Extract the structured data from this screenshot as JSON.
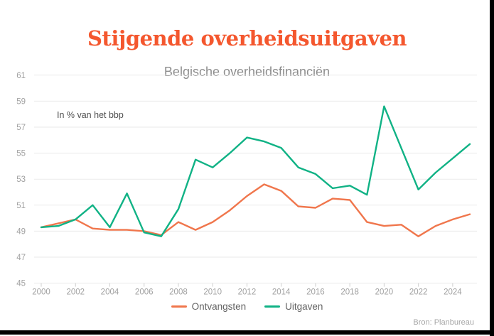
{
  "header": {
    "title": "Stijgende overheidsuitgaven",
    "subtitle": "Belgische overheidsfinanciën"
  },
  "source": "Bron: Planbureau",
  "colors": {
    "title": "#f4572e",
    "subtitle": "#8d8d8d",
    "ontvangsten": "#f0764c",
    "uitgaven": "#10b285",
    "grid": "#eaeaea",
    "axis_tick": "#cfcfcf",
    "tick_label": "#a1a1a1",
    "legend_text": "#636363",
    "annotation_text": "#4f4f4f",
    "source_text": "#a6a6a6",
    "frame": "#000000"
  },
  "chart_data": {
    "type": "line",
    "title": "Stijgende overheidsuitgaven",
    "subtitle": "Belgische overheidsfinanciën",
    "annotation": "In % van het bbp",
    "xlabel": "",
    "ylabel": "",
    "grid": true,
    "legend_position": "bottom",
    "ylim": [
      45,
      61
    ],
    "yticks": [
      45,
      47,
      49,
      51,
      53,
      55,
      57,
      59,
      61
    ],
    "xticks": [
      2000,
      2002,
      2004,
      2006,
      2008,
      2010,
      2012,
      2014,
      2016,
      2018,
      2020,
      2022,
      2024
    ],
    "x": [
      2000,
      2001,
      2002,
      2003,
      2004,
      2005,
      2006,
      2007,
      2008,
      2009,
      2010,
      2011,
      2012,
      2013,
      2014,
      2015,
      2016,
      2017,
      2018,
      2019,
      2020,
      2021,
      2022,
      2023,
      2024,
      2025
    ],
    "series": [
      {
        "name": "Ontvangsten",
        "color": "#f0764c",
        "values": [
          49.3,
          49.6,
          49.9,
          49.2,
          49.1,
          49.1,
          49.0,
          48.7,
          49.7,
          49.1,
          49.7,
          50.6,
          51.7,
          52.6,
          52.1,
          50.9,
          50.8,
          51.5,
          51.4,
          49.7,
          49.4,
          49.5,
          48.6,
          49.4,
          49.9,
          50.3
        ]
      },
      {
        "name": "Uitgaven",
        "color": "#10b285",
        "values": [
          49.3,
          49.4,
          49.9,
          51.0,
          49.3,
          51.9,
          48.9,
          48.6,
          50.7,
          54.5,
          53.9,
          55.0,
          56.2,
          55.9,
          55.4,
          53.9,
          53.4,
          52.3,
          52.5,
          51.8,
          58.6,
          55.4,
          52.2,
          53.5,
          54.6,
          55.7
        ]
      }
    ]
  }
}
